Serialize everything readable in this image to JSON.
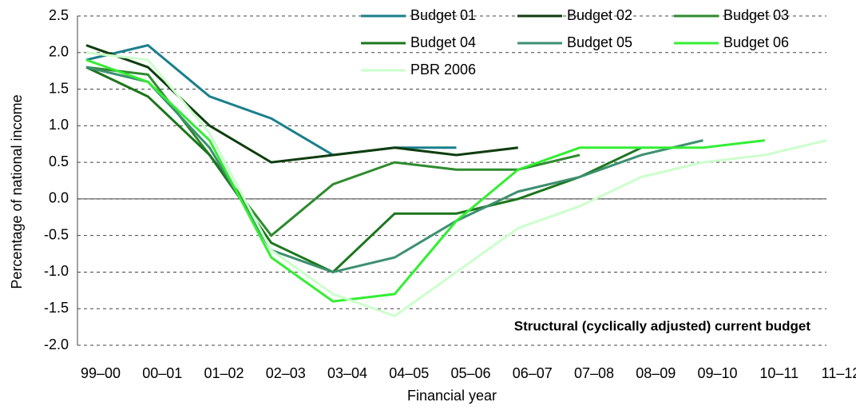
{
  "chart_data": {
    "type": "line",
    "y_label": "Percentage of national income",
    "x_label": "Financial year",
    "annotation": "Structural (cyclically adjusted) current budget",
    "categories": [
      "99–00",
      "00–01",
      "01–02",
      "02–03",
      "03–04",
      "04–05",
      "05–06",
      "06–07",
      "07–08",
      "08–09",
      "09–10",
      "10–11",
      "11–12"
    ],
    "series": [
      {
        "name": "Budget 01",
        "color": "#1b7f8c",
        "values": [
          1.9,
          2.1,
          1.4,
          1.1,
          0.6,
          0.7,
          0.7,
          null,
          null,
          null,
          null,
          null,
          null
        ]
      },
      {
        "name": "Budget 02",
        "color": "#0f3d0f",
        "values": [
          2.1,
          1.8,
          1.0,
          0.5,
          0.6,
          0.7,
          0.6,
          0.7,
          null,
          null,
          null,
          null,
          null
        ]
      },
      {
        "name": "Budget 03",
        "color": "#2e8b2e",
        "values": [
          1.8,
          1.7,
          0.6,
          -0.5,
          0.2,
          0.5,
          0.4,
          0.4,
          0.6,
          null,
          null,
          null,
          null
        ]
      },
      {
        "name": "Budget 04",
        "color": "#1c761c",
        "values": [
          1.8,
          1.4,
          0.6,
          -0.6,
          -1.0,
          -0.2,
          -0.2,
          0.0,
          0.3,
          0.7,
          null,
          null,
          null
        ]
      },
      {
        "name": "Budget 05",
        "color": "#3d9070",
        "values": [
          1.8,
          1.6,
          0.7,
          -0.7,
          -1.0,
          -0.8,
          -0.3,
          0.1,
          0.3,
          0.6,
          0.8,
          null,
          null
        ]
      },
      {
        "name": "Budget 06",
        "color": "#33ee33",
        "values": [
          1.9,
          1.6,
          0.8,
          -0.8,
          -1.4,
          -1.3,
          -0.3,
          0.4,
          0.7,
          0.7,
          0.7,
          0.8,
          null
        ]
      },
      {
        "name": "PBR 2006",
        "color": "#ccffcc",
        "values": [
          2.0,
          1.9,
          0.9,
          -0.7,
          -1.3,
          -1.6,
          -1.0,
          -0.4,
          -0.1,
          0.3,
          0.5,
          0.6,
          0.8
        ]
      }
    ],
    "ylim": [
      -2.0,
      2.5
    ],
    "yticks": [
      {
        "value": -2.0,
        "label": "-2.0"
      },
      {
        "value": -1.5,
        "label": "-1.5"
      },
      {
        "value": -1.0,
        "label": "-1.0"
      },
      {
        "value": -0.5,
        "label": "-0.5"
      },
      {
        "value": 0.0,
        "label": "0.0"
      },
      {
        "value": 0.5,
        "label": "0.5"
      },
      {
        "value": 1.0,
        "label": "1.0"
      },
      {
        "value": 1.5,
        "label": "1.5"
      },
      {
        "value": 2.0,
        "label": "2.0"
      },
      {
        "value": 2.5,
        "label": "2.5"
      }
    ],
    "grid": true
  }
}
